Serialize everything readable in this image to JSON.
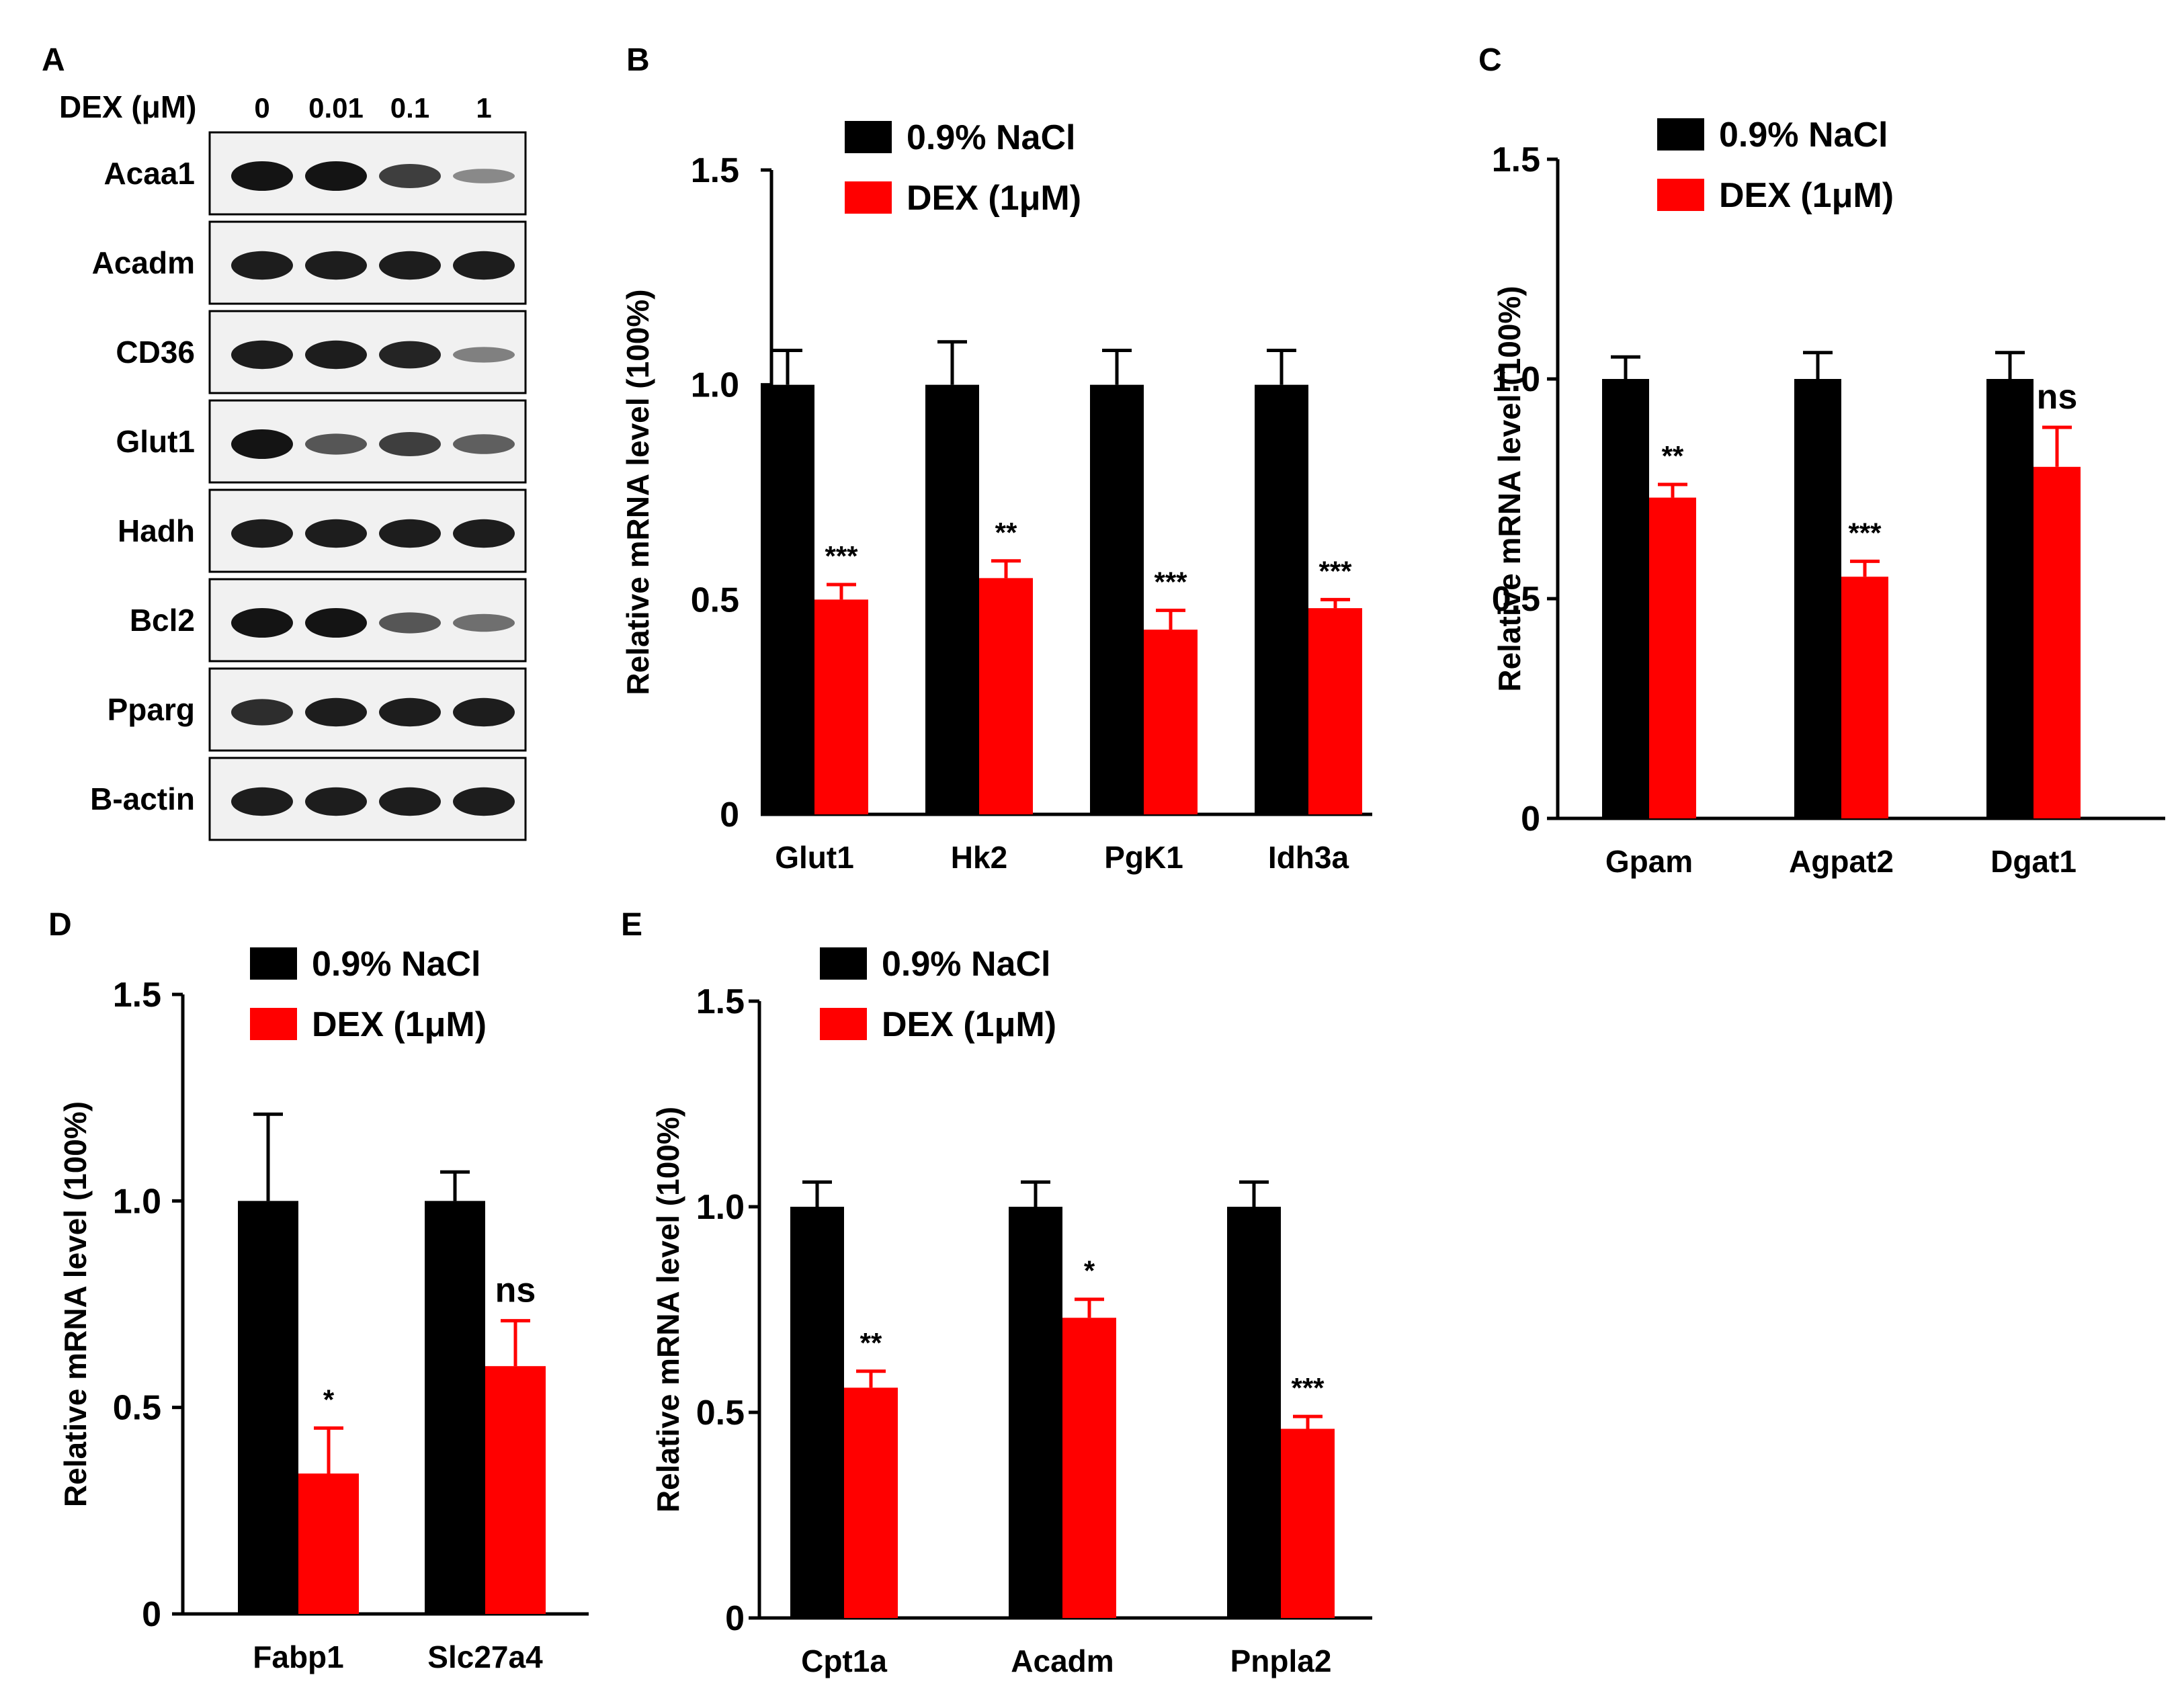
{
  "colors": {
    "control": "#000000",
    "treatment": "#ff0000",
    "axis": "#000000",
    "blot_bg": "#f1f1f1",
    "band": "#141414"
  },
  "western_blot": {
    "panel_label": "A",
    "dose_label": "DEX (μM)",
    "doses": [
      "0",
      "0.01",
      "0.1",
      "1"
    ],
    "proteins": [
      {
        "name": "Acaa1",
        "intensity": [
          1.0,
          1.0,
          0.75,
          0.3
        ]
      },
      {
        "name": "Acadm",
        "intensity": [
          0.95,
          0.95,
          0.95,
          0.95
        ]
      },
      {
        "name": "CD36",
        "intensity": [
          0.95,
          0.95,
          0.9,
          0.35
        ]
      },
      {
        "name": "Glut1",
        "intensity": [
          1.0,
          0.6,
          0.75,
          0.55
        ]
      },
      {
        "name": "Hadh",
        "intensity": [
          0.95,
          0.95,
          0.95,
          0.95
        ]
      },
      {
        "name": "Bcl2",
        "intensity": [
          1.0,
          1.0,
          0.6,
          0.45
        ]
      },
      {
        "name": "Pparg",
        "intensity": [
          0.85,
          0.95,
          0.95,
          0.95
        ]
      },
      {
        "name": "B-actin",
        "intensity": [
          0.95,
          0.95,
          0.95,
          0.95
        ]
      }
    ]
  },
  "chart_data": [
    {
      "panel_label": "B",
      "type": "bar",
      "ylabel": "Relative mRNA level (100%)",
      "ylim": [
        0,
        1.5
      ],
      "yticks": [
        "0",
        "0.5",
        "1.0",
        "1.5"
      ],
      "categories": [
        "Glut1",
        "Hk2",
        "PgK1",
        "Idh3a"
      ],
      "legend": [
        "0.9% NaCl",
        "DEX (1μM)"
      ],
      "series": [
        {
          "name": "0.9% NaCl",
          "values": [
            1.0,
            1.0,
            1.0,
            1.0
          ],
          "errors": [
            0.08,
            0.1,
            0.08,
            0.08
          ]
        },
        {
          "name": "DEX (1μM)",
          "values": [
            0.5,
            0.55,
            0.43,
            0.48
          ],
          "errors": [
            0.035,
            0.04,
            0.045,
            0.02
          ]
        }
      ],
      "significance": [
        "***",
        "**",
        "***",
        "***"
      ]
    },
    {
      "panel_label": "C",
      "type": "bar",
      "ylabel": "Relative mRNA level (100%)",
      "ylim": [
        0,
        1.5
      ],
      "yticks": [
        "0",
        "0.5",
        "1.0",
        "1.5"
      ],
      "categories": [
        "Gpam",
        "Agpat2",
        "Dgat1"
      ],
      "legend": [
        "0.9% NaCl",
        "DEX (1μM)"
      ],
      "series": [
        {
          "name": "0.9% NaCl",
          "values": [
            1.0,
            1.0,
            1.0
          ],
          "errors": [
            0.05,
            0.06,
            0.06
          ]
        },
        {
          "name": "DEX (1μM)",
          "values": [
            0.73,
            0.55,
            0.8
          ],
          "errors": [
            0.03,
            0.035,
            0.09
          ]
        }
      ],
      "significance": [
        "**",
        "***",
        "ns"
      ]
    },
    {
      "panel_label": "D",
      "type": "bar",
      "ylabel": "Relative mRNA level (100%)",
      "ylim": [
        0,
        1.5
      ],
      "yticks": [
        "0",
        "0.5",
        "1.0",
        "1.5"
      ],
      "categories": [
        "Fabp1",
        "Slc27a4"
      ],
      "legend": [
        "0.9% NaCl",
        "DEX (1μM)"
      ],
      "series": [
        {
          "name": "0.9% NaCl",
          "values": [
            1.0,
            1.0
          ],
          "errors": [
            0.21,
            0.07
          ]
        },
        {
          "name": "DEX (1μM)",
          "values": [
            0.34,
            0.6
          ],
          "errors": [
            0.11,
            0.11
          ]
        }
      ],
      "significance": [
        "*",
        "ns"
      ]
    },
    {
      "panel_label": "E",
      "type": "bar",
      "ylabel": "Relative mRNA level (100%)",
      "ylim": [
        0,
        1.5
      ],
      "yticks": [
        "0",
        "0.5",
        "1.0",
        "1.5"
      ],
      "categories": [
        "Cpt1a",
        "Acadm",
        "Pnpla2"
      ],
      "legend": [
        "0.9% NaCl",
        "DEX (1μM)"
      ],
      "series": [
        {
          "name": "0.9% NaCl",
          "values": [
            1.0,
            1.0,
            1.0
          ],
          "errors": [
            0.06,
            0.06,
            0.06
          ]
        },
        {
          "name": "DEX (1μM)",
          "values": [
            0.56,
            0.73,
            0.46
          ],
          "errors": [
            0.04,
            0.045,
            0.03
          ]
        }
      ],
      "significance": [
        "**",
        "*",
        "***"
      ]
    }
  ]
}
